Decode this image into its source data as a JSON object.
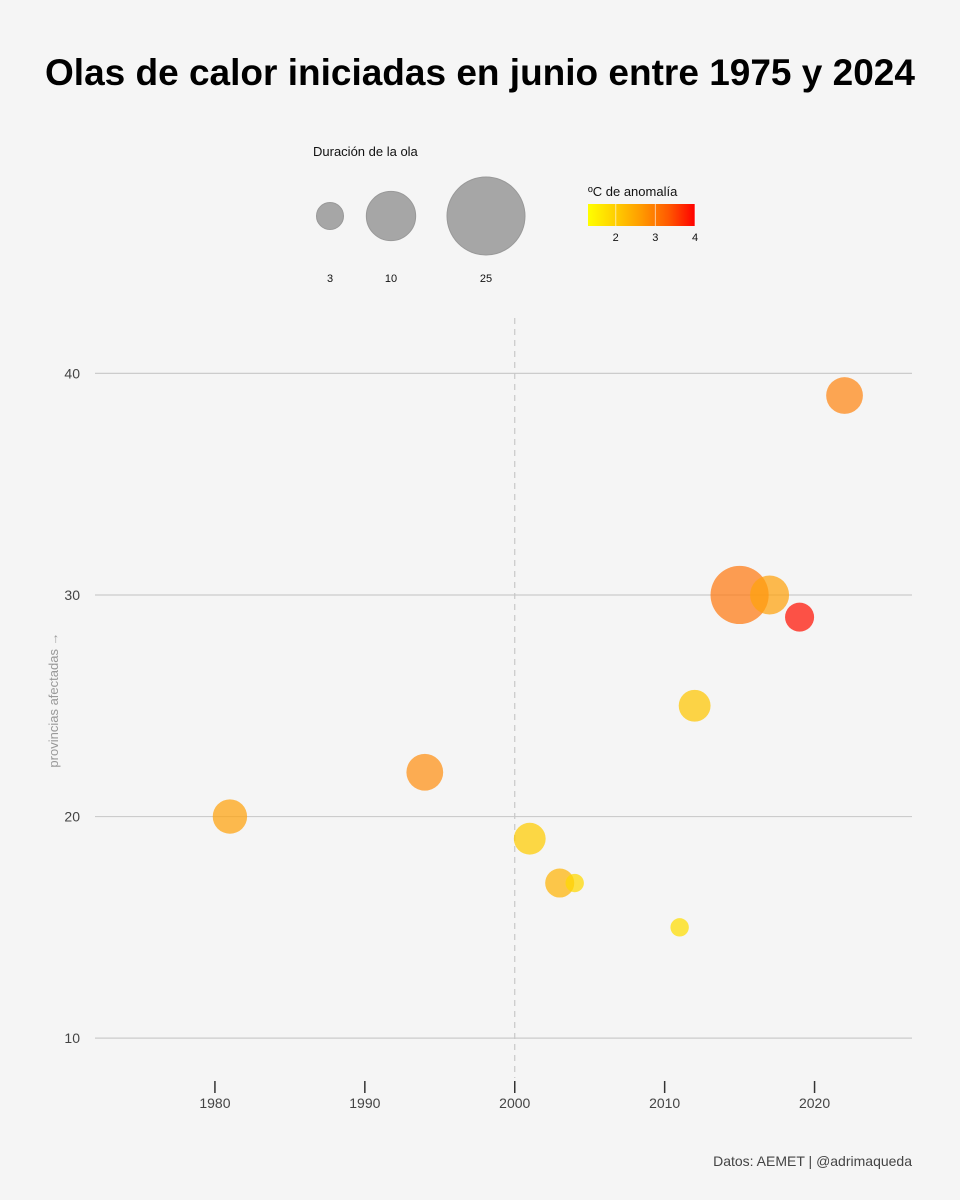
{
  "chart_data": {
    "type": "scatter",
    "title": "Olas de calor iniciadas en junio entre 1975 y 2024",
    "xlabel": "",
    "ylabel": "provincias afectadas →",
    "xlim": [
      1972,
      2026.5
    ],
    "ylim": [
      8.2,
      42.5
    ],
    "x_ticks": [
      1980,
      1990,
      2000,
      2010,
      2020
    ],
    "y_ticks": [
      10,
      20,
      30,
      40
    ],
    "reference_line_x": 2000,
    "grid": "horizontal",
    "size_legend": {
      "title": "Duración de la ola",
      "values": [
        3,
        10,
        25
      ],
      "labels": [
        "3",
        "10",
        "25"
      ]
    },
    "color_legend": {
      "title": "ºC de anomalía",
      "range": [
        1.3,
        4
      ],
      "ticks": [
        "2",
        "3",
        "4"
      ],
      "colors": [
        "#ffff00",
        "#ff0000"
      ]
    },
    "points": [
      {
        "year": 1981,
        "provinces": 20,
        "duration": 7,
        "anomaly": 2.4
      },
      {
        "year": 1994,
        "provinces": 22,
        "duration": 8,
        "anomaly": 2.6
      },
      {
        "year": 2001,
        "provinces": 19,
        "duration": 6,
        "anomaly": 1.9
      },
      {
        "year": 2003,
        "provinces": 17,
        "duration": 5,
        "anomaly": 2.2
      },
      {
        "year": 2004,
        "provinces": 17,
        "duration": 2,
        "anomaly": 1.7
      },
      {
        "year": 2011,
        "provinces": 15,
        "duration": 2,
        "anomaly": 1.6
      },
      {
        "year": 2012,
        "provinces": 25,
        "duration": 6,
        "anomaly": 2.0
      },
      {
        "year": 2015,
        "provinces": 30,
        "duration": 20,
        "anomaly": 2.8
      },
      {
        "year": 2017,
        "provinces": 30,
        "duration": 9,
        "anomaly": 2.4
      },
      {
        "year": 2019,
        "provinces": 29,
        "duration": 5,
        "anomaly": 3.8
      },
      {
        "year": 2022,
        "provinces": 39,
        "duration": 8,
        "anomaly": 2.7
      }
    ]
  },
  "source": "Datos: AEMET | @adrimaqueda"
}
